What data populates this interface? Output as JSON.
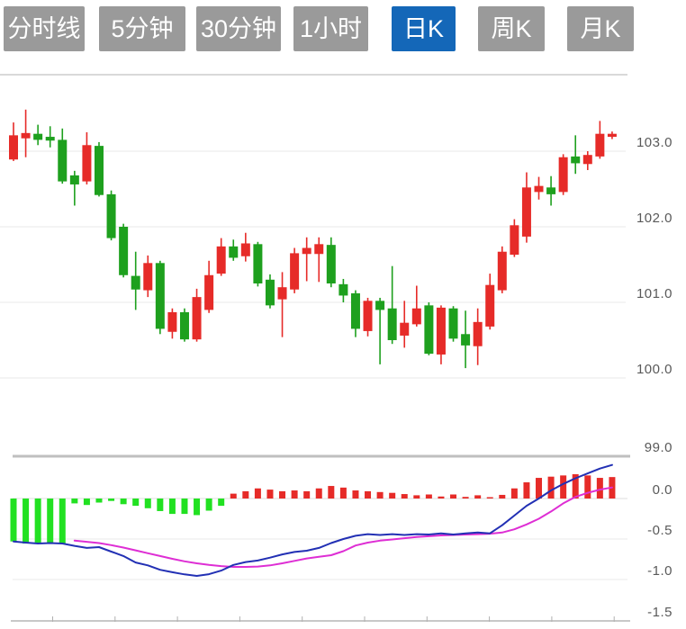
{
  "tabs": [
    {
      "name": "tab-timeline",
      "label": "分时线",
      "active": false
    },
    {
      "name": "tab-5min",
      "label": "5分钟",
      "active": false
    },
    {
      "name": "tab-30min",
      "label": "30分钟",
      "active": false
    },
    {
      "name": "tab-1hour",
      "label": "1小时",
      "active": false
    },
    {
      "name": "tab-daily-k",
      "label": "日K",
      "active": true
    },
    {
      "name": "tab-weekly-k",
      "label": "周K",
      "active": false
    },
    {
      "name": "tab-monthly-k",
      "label": "月K",
      "active": false
    }
  ],
  "colors": {
    "tab_inactive_bg": "#9a9a9a",
    "tab_active_bg": "#1467b8",
    "tab_text": "#ffffff",
    "candle_up": "#e62b28",
    "candle_down": "#1ea01e",
    "hist_positive": "#e62b28",
    "hist_negative": "#22e122",
    "dif_line": "#2230b4",
    "dea_line": "#de2ed4",
    "axis_text": "#595959",
    "grid_light": "#e9e9e9",
    "grid_dark": "#bfbfbf"
  },
  "chart_data": {
    "type": "candlestick",
    "indicator": "MACD",
    "title": "",
    "legend_position": "none",
    "grid": true,
    "main_axis_ticks": [
      "103.0",
      "102.0",
      "101.0",
      "100.0",
      "99.0"
    ],
    "macd_axis_ticks": [
      "0.0",
      "-0.5",
      "-1.0",
      "-1.5"
    ],
    "main_axis_range": [
      99.0,
      104.0
    ],
    "macd_axis_range": [
      -1.5,
      0.55
    ],
    "candles": [
      [
        102.89,
        103.38,
        102.87,
        103.21
      ],
      [
        103.17,
        103.55,
        102.92,
        103.24
      ],
      [
        103.23,
        103.35,
        103.08,
        103.15
      ],
      [
        103.19,
        103.33,
        103.05,
        103.14
      ],
      [
        103.15,
        103.3,
        102.57,
        102.6
      ],
      [
        102.68,
        102.74,
        102.28,
        102.56
      ],
      [
        102.6,
        103.25,
        102.56,
        103.08
      ],
      [
        103.07,
        103.12,
        102.4,
        102.42
      ],
      [
        102.43,
        102.48,
        101.82,
        101.85
      ],
      [
        102.0,
        102.04,
        101.33,
        101.36
      ],
      [
        101.35,
        101.67,
        100.9,
        101.17
      ],
      [
        101.16,
        101.62,
        101.07,
        101.52
      ],
      [
        101.52,
        101.55,
        100.58,
        100.65
      ],
      [
        100.61,
        100.92,
        100.52,
        100.87
      ],
      [
        100.87,
        100.92,
        100.48,
        100.51
      ],
      [
        100.51,
        101.18,
        100.48,
        101.07
      ],
      [
        100.9,
        101.55,
        100.86,
        101.36
      ],
      [
        101.38,
        101.85,
        101.35,
        101.74
      ],
      [
        101.74,
        101.83,
        101.55,
        101.59
      ],
      [
        101.61,
        101.92,
        101.54,
        101.78
      ],
      [
        101.77,
        101.8,
        101.21,
        101.25
      ],
      [
        101.3,
        101.37,
        100.92,
        100.96
      ],
      [
        101.04,
        101.4,
        100.54,
        101.2
      ],
      [
        101.17,
        101.72,
        101.12,
        101.65
      ],
      [
        101.64,
        101.86,
        101.28,
        101.72
      ],
      [
        101.64,
        101.86,
        101.27,
        101.77
      ],
      [
        101.76,
        101.86,
        101.2,
        101.25
      ],
      [
        101.24,
        101.31,
        101.0,
        101.09
      ],
      [
        101.12,
        101.16,
        100.54,
        100.65
      ],
      [
        100.62,
        101.06,
        100.55,
        101.02
      ],
      [
        101.02,
        101.06,
        100.18,
        100.9
      ],
      [
        100.92,
        101.48,
        100.45,
        100.5
      ],
      [
        100.56,
        101.02,
        100.4,
        100.73
      ],
      [
        100.71,
        101.22,
        100.68,
        100.92
      ],
      [
        100.96,
        101.0,
        100.3,
        100.32
      ],
      [
        100.31,
        100.96,
        100.18,
        100.93
      ],
      [
        100.92,
        100.95,
        100.48,
        100.52
      ],
      [
        100.58,
        100.89,
        100.13,
        100.43
      ],
      [
        100.42,
        100.92,
        100.17,
        100.74
      ],
      [
        100.68,
        101.38,
        100.64,
        101.23
      ],
      [
        101.16,
        101.74,
        101.12,
        101.67
      ],
      [
        101.63,
        102.1,
        101.6,
        102.02
      ],
      [
        101.87,
        102.72,
        101.79,
        102.52
      ],
      [
        102.46,
        102.66,
        102.36,
        102.54
      ],
      [
        102.52,
        102.67,
        102.28,
        102.43
      ],
      [
        102.46,
        102.96,
        102.42,
        102.92
      ],
      [
        102.93,
        103.21,
        102.7,
        102.84
      ],
      [
        102.83,
        103.0,
        102.75,
        102.95
      ],
      [
        102.93,
        103.4,
        102.9,
        103.23
      ],
      [
        103.19,
        103.26,
        103.16,
        103.23
      ]
    ],
    "macd_hist": [
      -0.53,
      -0.556,
      -0.556,
      -0.55,
      -0.556,
      -0.06,
      -0.08,
      -0.05,
      -0.03,
      -0.07,
      -0.09,
      -0.12,
      -0.155,
      -0.19,
      -0.19,
      -0.205,
      -0.15,
      -0.09,
      0.06,
      0.09,
      0.125,
      0.11,
      0.09,
      0.1,
      0.09,
      0.125,
      0.155,
      0.135,
      0.1,
      0.09,
      0.08,
      0.07,
      0.055,
      0.04,
      0.05,
      0.025,
      0.05,
      0.02,
      0.04,
      0.015,
      0.045,
      0.125,
      0.2,
      0.255,
      0.27,
      0.285,
      0.3,
      0.285,
      0.255,
      0.265
    ],
    "macd_dif": [
      -0.53,
      -0.545,
      -0.556,
      -0.55,
      -0.556,
      -0.585,
      -0.61,
      -0.6,
      -0.655,
      -0.71,
      -0.79,
      -0.825,
      -0.88,
      -0.91,
      -0.937,
      -0.955,
      -0.935,
      -0.89,
      -0.82,
      -0.785,
      -0.765,
      -0.73,
      -0.69,
      -0.66,
      -0.645,
      -0.61,
      -0.55,
      -0.5,
      -0.46,
      -0.44,
      -0.45,
      -0.44,
      -0.45,
      -0.44,
      -0.445,
      -0.43,
      -0.445,
      -0.43,
      -0.42,
      -0.43,
      -0.33,
      -0.21,
      -0.09,
      0.0,
      0.1,
      0.18,
      0.25,
      0.31,
      0.37,
      0.414
    ],
    "macd_dea": [
      null,
      null,
      null,
      null,
      null,
      -0.52,
      -0.535,
      -0.55,
      -0.575,
      -0.605,
      -0.64,
      -0.675,
      -0.71,
      -0.745,
      -0.775,
      -0.8,
      -0.82,
      -0.835,
      -0.845,
      -0.845,
      -0.84,
      -0.825,
      -0.8,
      -0.77,
      -0.74,
      -0.72,
      -0.7,
      -0.65,
      -0.58,
      -0.545,
      -0.52,
      -0.505,
      -0.49,
      -0.475,
      -0.465,
      -0.455,
      -0.45,
      -0.445,
      -0.44,
      -0.435,
      -0.42,
      -0.38,
      -0.32,
      -0.25,
      -0.16,
      -0.06,
      0.02,
      0.07,
      0.11,
      0.137
    ]
  }
}
